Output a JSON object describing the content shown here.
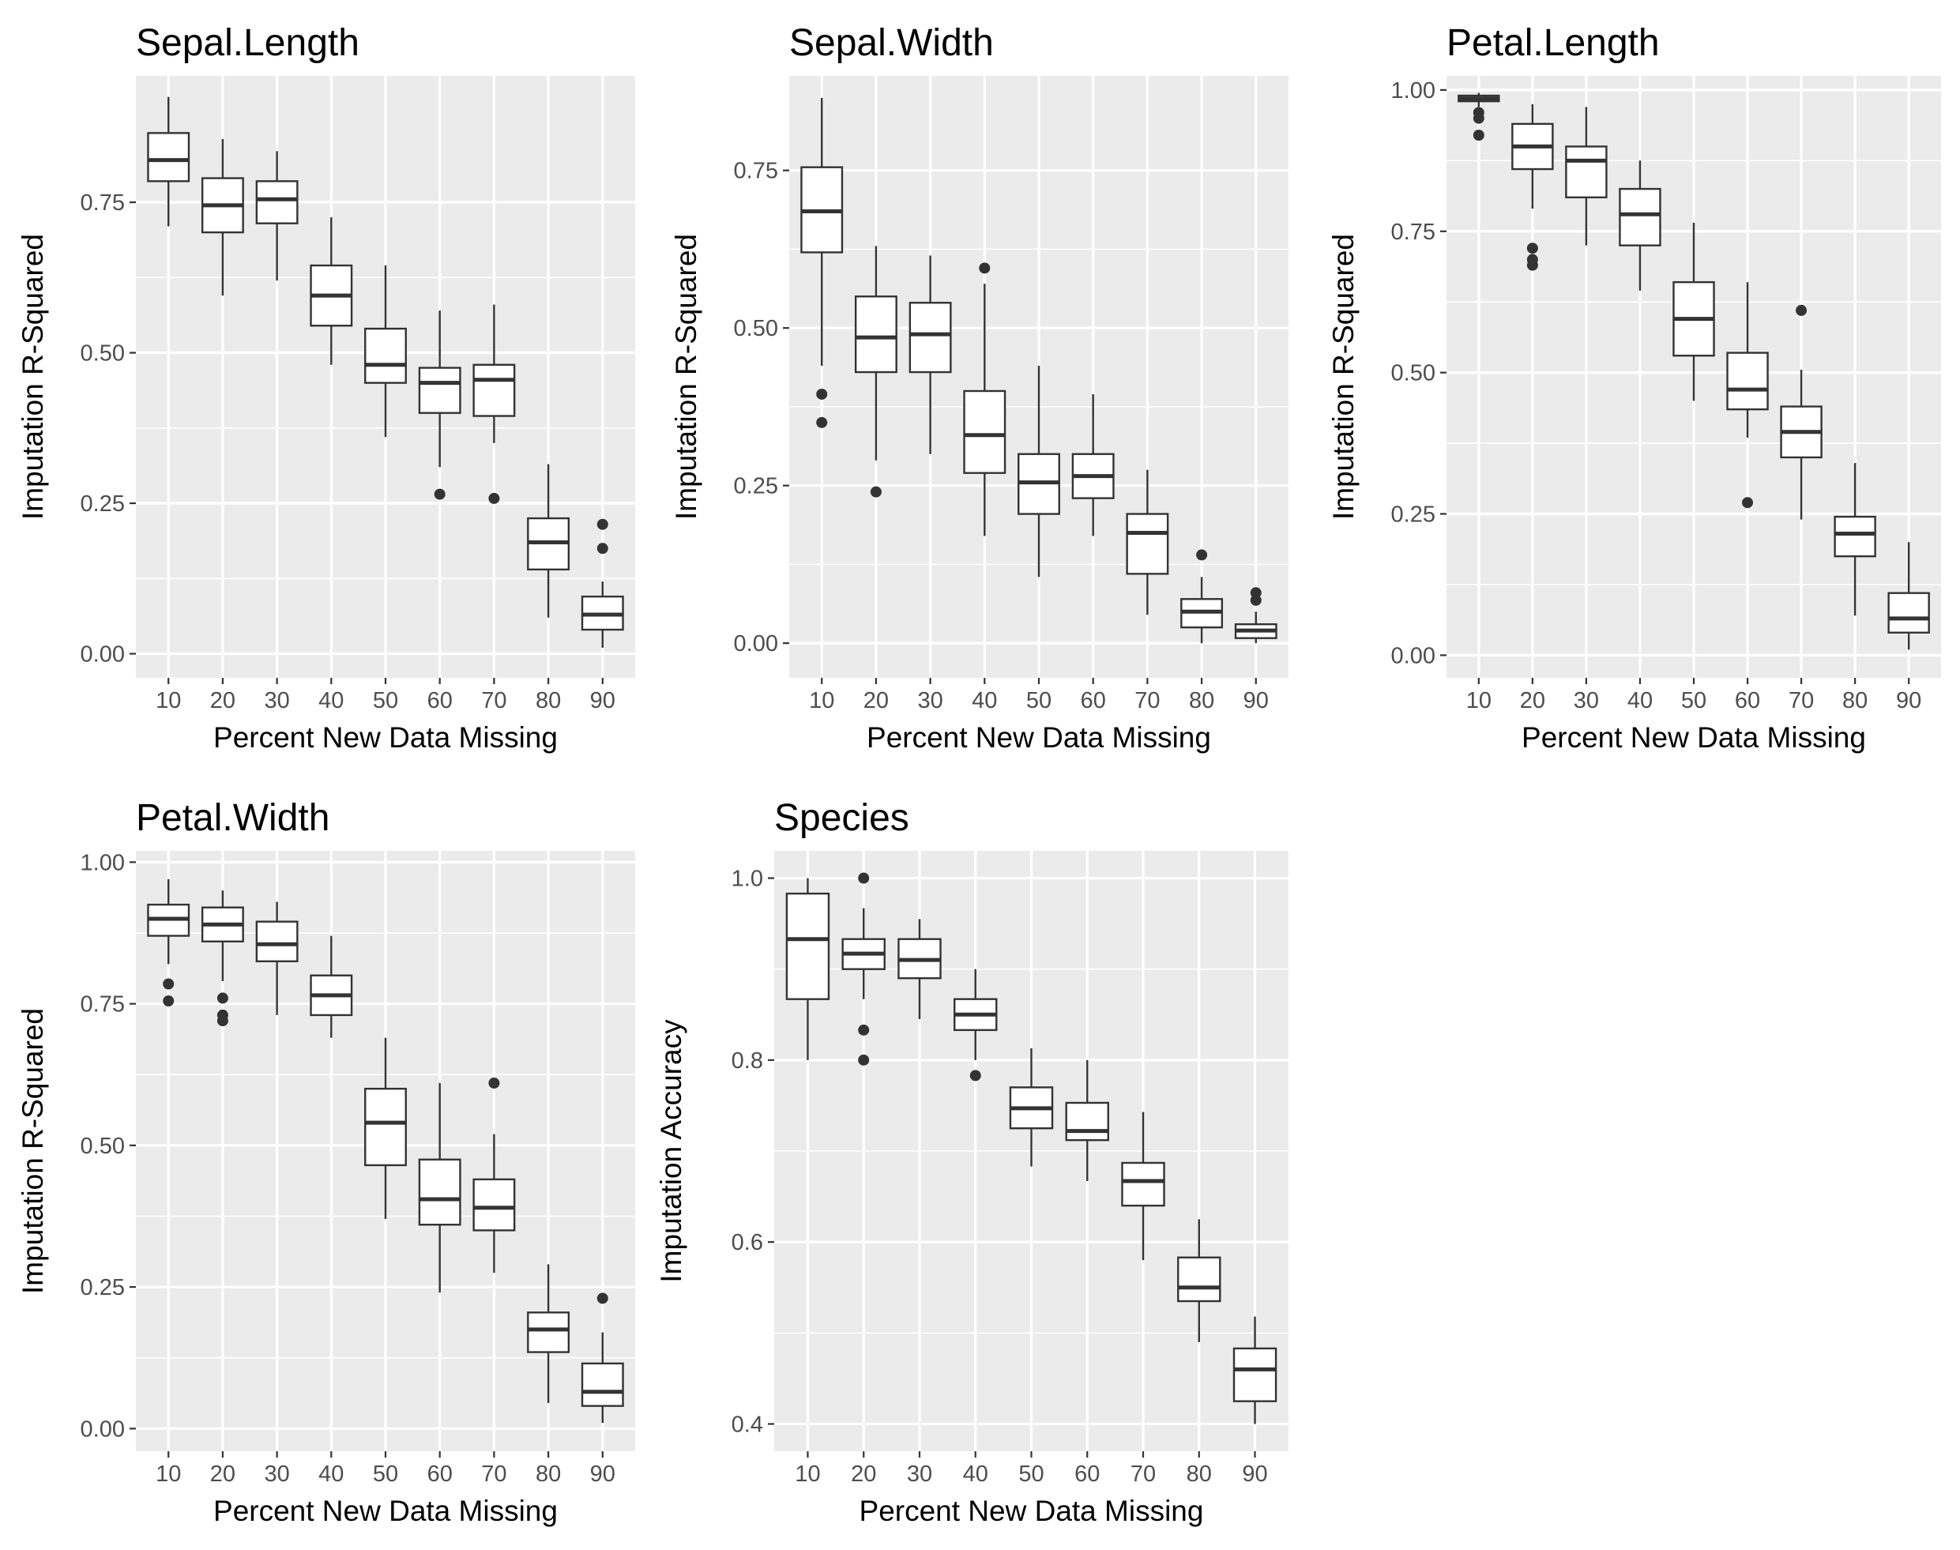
{
  "chart_data": [
    {
      "type": "box",
      "title": "Sepal.Length",
      "xlabel": "Percent New Data Missing",
      "ylabel": "Imputation R-Squared",
      "ylim": [
        -0.04,
        0.96
      ],
      "yticks": [
        0.0,
        0.25,
        0.5,
        0.75
      ],
      "ytick_labels": [
        "0.00",
        "0.25",
        "0.50",
        "0.75"
      ],
      "categories": [
        "10",
        "20",
        "30",
        "40",
        "50",
        "60",
        "70",
        "80",
        "90"
      ],
      "boxes": [
        {
          "whisker_low": 0.71,
          "q1": 0.785,
          "median": 0.82,
          "q3": 0.865,
          "whisker_high": 0.925,
          "outliers": []
        },
        {
          "whisker_low": 0.595,
          "q1": 0.7,
          "median": 0.745,
          "q3": 0.79,
          "whisker_high": 0.855,
          "outliers": []
        },
        {
          "whisker_low": 0.62,
          "q1": 0.715,
          "median": 0.755,
          "q3": 0.785,
          "whisker_high": 0.835,
          "outliers": []
        },
        {
          "whisker_low": 0.48,
          "q1": 0.545,
          "median": 0.595,
          "q3": 0.645,
          "whisker_high": 0.725,
          "outliers": []
        },
        {
          "whisker_low": 0.36,
          "q1": 0.45,
          "median": 0.48,
          "q3": 0.54,
          "whisker_high": 0.645,
          "outliers": []
        },
        {
          "whisker_low": 0.31,
          "q1": 0.4,
          "median": 0.45,
          "q3": 0.475,
          "whisker_high": 0.57,
          "outliers": [
            0.265
          ]
        },
        {
          "whisker_low": 0.35,
          "q1": 0.395,
          "median": 0.455,
          "q3": 0.48,
          "whisker_high": 0.58,
          "outliers": [
            0.258
          ]
        },
        {
          "whisker_low": 0.06,
          "q1": 0.14,
          "median": 0.185,
          "q3": 0.225,
          "whisker_high": 0.315,
          "outliers": []
        },
        {
          "whisker_low": 0.01,
          "q1": 0.04,
          "median": 0.065,
          "q3": 0.095,
          "whisker_high": 0.12,
          "outliers": [
            0.175,
            0.215
          ]
        }
      ]
    },
    {
      "type": "box",
      "title": "Sepal.Width",
      "xlabel": "Percent New Data Missing",
      "ylabel": "Imputation R-Squared",
      "ylim": [
        -0.055,
        0.9
      ],
      "yticks": [
        0.0,
        0.25,
        0.5,
        0.75
      ],
      "ytick_labels": [
        "0.00",
        "0.25",
        "0.50",
        "0.75"
      ],
      "categories": [
        "10",
        "20",
        "30",
        "40",
        "50",
        "60",
        "70",
        "80",
        "90"
      ],
      "boxes": [
        {
          "whisker_low": 0.44,
          "q1": 0.62,
          "median": 0.685,
          "q3": 0.755,
          "whisker_high": 0.865,
          "outliers": [
            0.35,
            0.395
          ]
        },
        {
          "whisker_low": 0.29,
          "q1": 0.43,
          "median": 0.485,
          "q3": 0.55,
          "whisker_high": 0.63,
          "outliers": [
            0.24
          ]
        },
        {
          "whisker_low": 0.3,
          "q1": 0.43,
          "median": 0.49,
          "q3": 0.54,
          "whisker_high": 0.615,
          "outliers": []
        },
        {
          "whisker_low": 0.17,
          "q1": 0.27,
          "median": 0.33,
          "q3": 0.4,
          "whisker_high": 0.57,
          "outliers": [
            0.595
          ]
        },
        {
          "whisker_low": 0.105,
          "q1": 0.205,
          "median": 0.255,
          "q3": 0.3,
          "whisker_high": 0.44,
          "outliers": []
        },
        {
          "whisker_low": 0.17,
          "q1": 0.23,
          "median": 0.265,
          "q3": 0.3,
          "whisker_high": 0.395,
          "outliers": []
        },
        {
          "whisker_low": 0.045,
          "q1": 0.11,
          "median": 0.175,
          "q3": 0.205,
          "whisker_high": 0.275,
          "outliers": []
        },
        {
          "whisker_low": 0.0,
          "q1": 0.025,
          "median": 0.05,
          "q3": 0.07,
          "whisker_high": 0.105,
          "outliers": [
            0.14
          ]
        },
        {
          "whisker_low": 0.0,
          "q1": 0.008,
          "median": 0.02,
          "q3": 0.03,
          "whisker_high": 0.05,
          "outliers": [
            0.068,
            0.08
          ]
        }
      ]
    },
    {
      "type": "box",
      "title": "Petal.Length",
      "xlabel": "Percent New Data Missing",
      "ylabel": "Imputation R-Squared",
      "ylim": [
        -0.04,
        1.025
      ],
      "yticks": [
        0.0,
        0.25,
        0.5,
        0.75,
        1.0
      ],
      "ytick_labels": [
        "0.00",
        "0.25",
        "0.50",
        "0.75",
        "1.00"
      ],
      "categories": [
        "10",
        "20",
        "30",
        "40",
        "50",
        "60",
        "70",
        "80",
        "90"
      ],
      "boxes": [
        {
          "whisker_low": 0.97,
          "q1": 0.98,
          "median": 0.985,
          "q3": 0.99,
          "whisker_high": 0.995,
          "outliers": [
            0.92,
            0.95,
            0.96
          ]
        },
        {
          "whisker_low": 0.79,
          "q1": 0.86,
          "median": 0.9,
          "q3": 0.94,
          "whisker_high": 0.975,
          "outliers": [
            0.69,
            0.7,
            0.72
          ]
        },
        {
          "whisker_low": 0.725,
          "q1": 0.81,
          "median": 0.875,
          "q3": 0.9,
          "whisker_high": 0.97,
          "outliers": []
        },
        {
          "whisker_low": 0.645,
          "q1": 0.725,
          "median": 0.78,
          "q3": 0.825,
          "whisker_high": 0.875,
          "outliers": []
        },
        {
          "whisker_low": 0.45,
          "q1": 0.53,
          "median": 0.595,
          "q3": 0.66,
          "whisker_high": 0.765,
          "outliers": []
        },
        {
          "whisker_low": 0.385,
          "q1": 0.435,
          "median": 0.47,
          "q3": 0.535,
          "whisker_high": 0.66,
          "outliers": [
            0.27
          ]
        },
        {
          "whisker_low": 0.24,
          "q1": 0.35,
          "median": 0.395,
          "q3": 0.44,
          "whisker_high": 0.505,
          "outliers": [
            0.61
          ]
        },
        {
          "whisker_low": 0.07,
          "q1": 0.175,
          "median": 0.215,
          "q3": 0.245,
          "whisker_high": 0.34,
          "outliers": []
        },
        {
          "whisker_low": 0.01,
          "q1": 0.04,
          "median": 0.065,
          "q3": 0.11,
          "whisker_high": 0.2,
          "outliers": []
        }
      ]
    },
    {
      "type": "box",
      "title": "Petal.Width",
      "xlabel": "Percent New Data Missing",
      "ylabel": "Imputation R-Squared",
      "ylim": [
        -0.04,
        1.02
      ],
      "yticks": [
        0.0,
        0.25,
        0.5,
        0.75,
        1.0
      ],
      "ytick_labels": [
        "0.00",
        "0.25",
        "0.50",
        "0.75",
        "1.00"
      ],
      "categories": [
        "10",
        "20",
        "30",
        "40",
        "50",
        "60",
        "70",
        "80",
        "90"
      ],
      "boxes": [
        {
          "whisker_low": 0.82,
          "q1": 0.87,
          "median": 0.9,
          "q3": 0.925,
          "whisker_high": 0.97,
          "outliers": [
            0.755,
            0.785
          ]
        },
        {
          "whisker_low": 0.79,
          "q1": 0.86,
          "median": 0.89,
          "q3": 0.92,
          "whisker_high": 0.95,
          "outliers": [
            0.72,
            0.73,
            0.76
          ]
        },
        {
          "whisker_low": 0.73,
          "q1": 0.825,
          "median": 0.855,
          "q3": 0.895,
          "whisker_high": 0.93,
          "outliers": []
        },
        {
          "whisker_low": 0.69,
          "q1": 0.73,
          "median": 0.765,
          "q3": 0.8,
          "whisker_high": 0.87,
          "outliers": []
        },
        {
          "whisker_low": 0.37,
          "q1": 0.465,
          "median": 0.54,
          "q3": 0.6,
          "whisker_high": 0.69,
          "outliers": []
        },
        {
          "whisker_low": 0.24,
          "q1": 0.36,
          "median": 0.405,
          "q3": 0.475,
          "whisker_high": 0.61,
          "outliers": []
        },
        {
          "whisker_low": 0.275,
          "q1": 0.35,
          "median": 0.39,
          "q3": 0.44,
          "whisker_high": 0.52,
          "outliers": [
            0.61
          ]
        },
        {
          "whisker_low": 0.045,
          "q1": 0.135,
          "median": 0.175,
          "q3": 0.205,
          "whisker_high": 0.29,
          "outliers": []
        },
        {
          "whisker_low": 0.01,
          "q1": 0.04,
          "median": 0.065,
          "q3": 0.115,
          "whisker_high": 0.17,
          "outliers": [
            0.23
          ]
        }
      ]
    },
    {
      "type": "box",
      "title": "Species",
      "xlabel": "Percent New Data Missing",
      "ylabel": "Imputation Accuracy",
      "ylim": [
        0.37,
        1.03
      ],
      "yticks": [
        0.4,
        0.6,
        0.8,
        1.0
      ],
      "ytick_labels": [
        "0.4",
        "0.6",
        "0.8",
        "1.0"
      ],
      "categories": [
        "10",
        "20",
        "30",
        "40",
        "50",
        "60",
        "70",
        "80",
        "90"
      ],
      "boxes": [
        {
          "whisker_low": 0.8,
          "q1": 0.867,
          "median": 0.933,
          "q3": 0.983,
          "whisker_high": 1.0,
          "outliers": []
        },
        {
          "whisker_low": 0.867,
          "q1": 0.9,
          "median": 0.917,
          "q3": 0.933,
          "whisker_high": 0.967,
          "outliers": [
            0.8,
            0.833,
            1.0
          ]
        },
        {
          "whisker_low": 0.845,
          "q1": 0.89,
          "median": 0.91,
          "q3": 0.933,
          "whisker_high": 0.955,
          "outliers": []
        },
        {
          "whisker_low": 0.8,
          "q1": 0.833,
          "median": 0.85,
          "q3": 0.867,
          "whisker_high": 0.9,
          "outliers": [
            0.783
          ]
        },
        {
          "whisker_low": 0.683,
          "q1": 0.725,
          "median": 0.747,
          "q3": 0.77,
          "whisker_high": 0.813,
          "outliers": []
        },
        {
          "whisker_low": 0.667,
          "q1": 0.712,
          "median": 0.722,
          "q3": 0.753,
          "whisker_high": 0.8,
          "outliers": []
        },
        {
          "whisker_low": 0.58,
          "q1": 0.64,
          "median": 0.667,
          "q3": 0.687,
          "whisker_high": 0.743,
          "outliers": []
        },
        {
          "whisker_low": 0.49,
          "q1": 0.535,
          "median": 0.55,
          "q3": 0.583,
          "whisker_high": 0.625,
          "outliers": []
        },
        {
          "whisker_low": 0.4,
          "q1": 0.425,
          "median": 0.46,
          "q3": 0.483,
          "whisker_high": 0.518,
          "outliers": []
        }
      ]
    }
  ]
}
